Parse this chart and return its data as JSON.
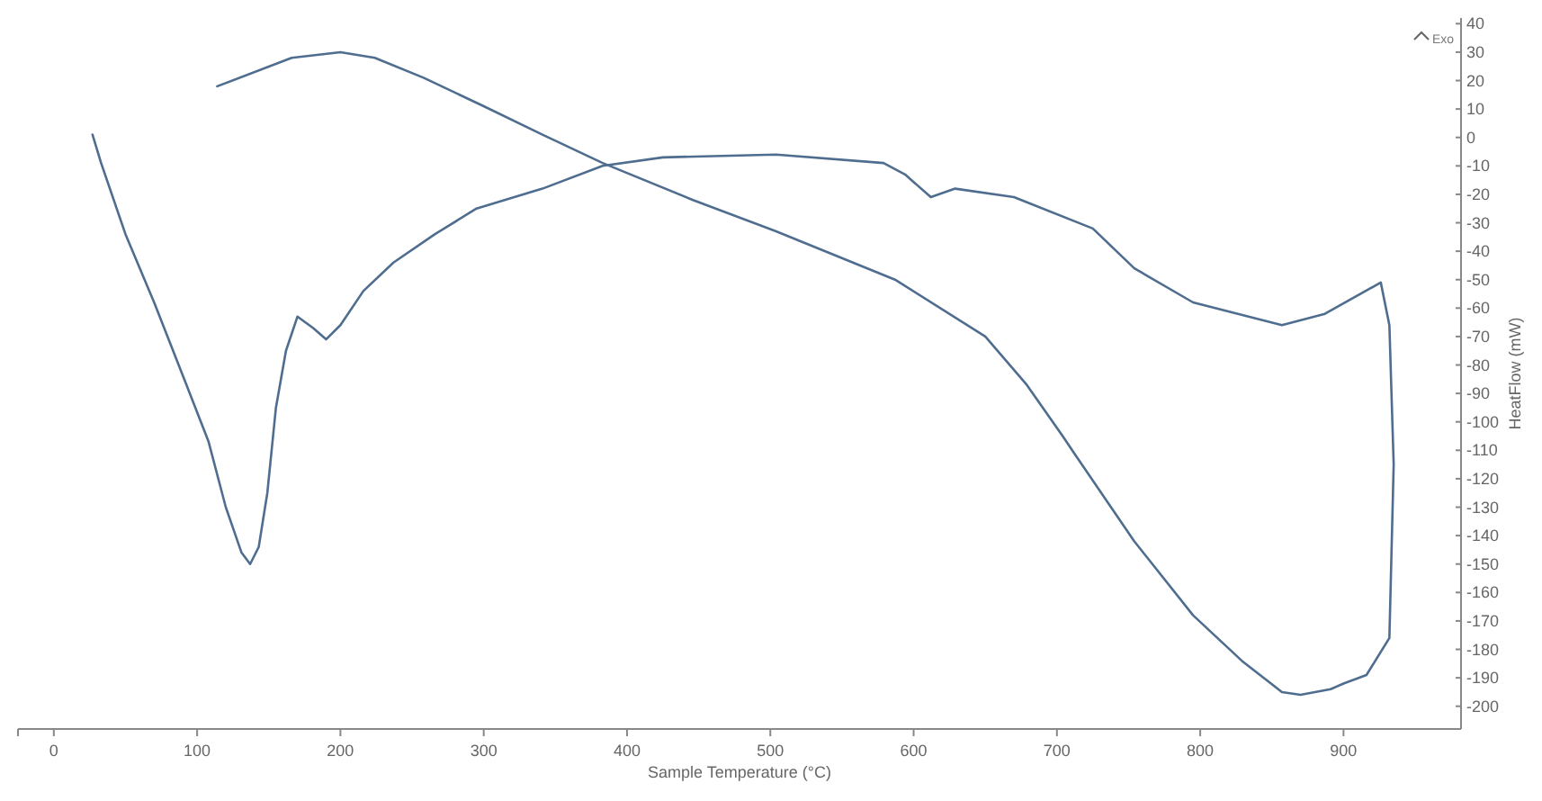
{
  "chart_data": {
    "type": "line",
    "xlabel": "Sample Temperature (°C)",
    "ylabel": "HeatFlow (mW)",
    "annotations": [
      "Exo"
    ],
    "xlim": [
      -25,
      982
    ],
    "ylim": [
      -208,
      42
    ],
    "xticks": [
      0,
      100,
      200,
      300,
      400,
      500,
      600,
      700,
      800,
      900
    ],
    "yticks": [
      40,
      30,
      20,
      10,
      0,
      -10,
      -20,
      -30,
      -40,
      -50,
      -60,
      -70,
      -80,
      -90,
      -100,
      -110,
      -120,
      -130,
      -140,
      -150,
      -160,
      -170,
      -180,
      -190,
      -200
    ],
    "grid": false,
    "marker": "none",
    "line_style": "solid",
    "series": [
      {
        "color": "#4f6d8f",
        "x": [
          27,
          33,
          50,
          70,
          91,
          108,
          120,
          131,
          137,
          143,
          149,
          155,
          162,
          170,
          181,
          190,
          200,
          216,
          237,
          266,
          295,
          341,
          383,
          425,
          504,
          579,
          594,
          612,
          629,
          670,
          725,
          754,
          795,
          857,
          887,
          926,
          932,
          935,
          932,
          916,
          900,
          891,
          870,
          857,
          829,
          795,
          754,
          712,
          704,
          679,
          650,
          587,
          504,
          446,
          383,
          341,
          300,
          258,
          224,
          200,
          166,
          114
        ],
        "values": [
          1,
          -9,
          -34,
          -58,
          -85,
          -107,
          -130,
          -146,
          -150,
          -144,
          -125,
          -95,
          -75,
          -63,
          -67,
          -71,
          -66,
          -54,
          -44,
          -34,
          -25,
          -18,
          -10,
          -7,
          -6,
          -9,
          -13,
          -21,
          -18,
          -21,
          -32,
          -46,
          -58,
          -66,
          -62,
          -51,
          -66,
          -115,
          -176,
          -189,
          -192,
          -194,
          -196,
          -195,
          -184,
          -168,
          -142,
          -111,
          -105,
          -87,
          -70,
          -50,
          -33,
          -22,
          -9,
          1,
          11,
          21,
          28,
          30,
          28,
          18
        ]
      }
    ]
  }
}
